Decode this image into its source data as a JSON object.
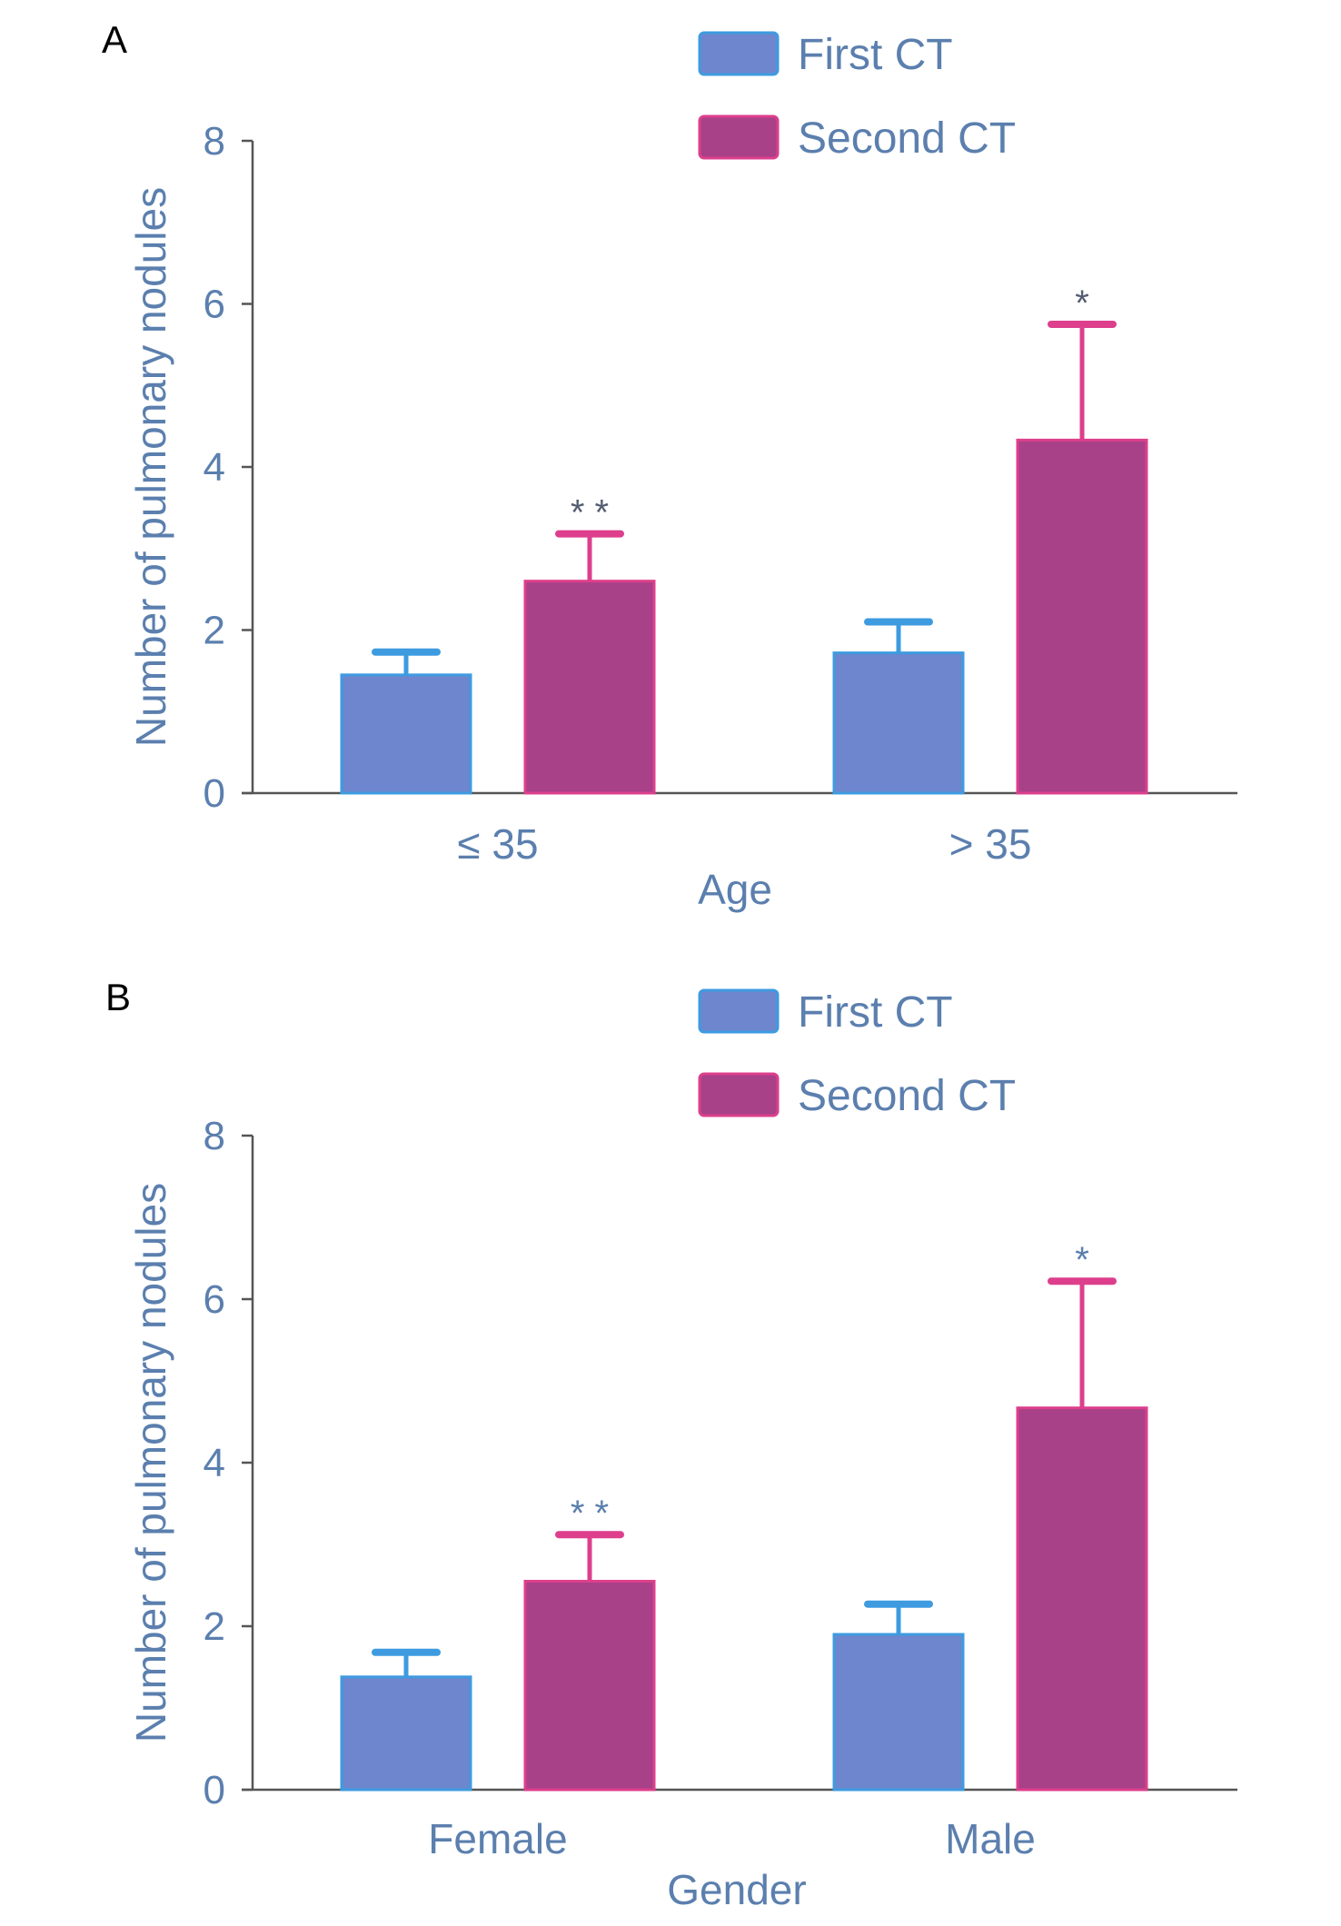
{
  "colors": {
    "first_ct": "#6d86cd",
    "first_ct_edge": "#3e9be0",
    "first_ct_error": "#3e9be0",
    "second_ct": "#a84188",
    "second_ct_edge": "#dd3f8c",
    "second_ct_error": "#dd3f8c",
    "axis": "#555555",
    "label": "#5b7fae"
  },
  "chart_data": [
    {
      "panel": "A",
      "type": "bar",
      "xlabel": "Age",
      "ylabel": "Number of pulmonary nodules",
      "ylim": [
        0,
        8
      ],
      "yticks": [
        0,
        2,
        4,
        6,
        8
      ],
      "grid": false,
      "legend": "top",
      "categories": [
        "≤ 35",
        "> 35"
      ],
      "series": [
        {
          "name": "First CT",
          "values": [
            1.45,
            1.72
          ],
          "error": [
            0.28,
            0.38
          ]
        },
        {
          "name": "Second CT",
          "values": [
            2.6,
            4.33
          ],
          "error": [
            0.58,
            1.42
          ]
        }
      ],
      "significance": [
        {
          "category": "≤ 35",
          "series": "Second CT",
          "label": "* *"
        },
        {
          "category": "> 35",
          "series": "Second CT",
          "label": "*"
        }
      ]
    },
    {
      "panel": "B",
      "type": "bar",
      "xlabel": "Gender",
      "ylabel": "Number of pulmonary nodules",
      "ylim": [
        0,
        8
      ],
      "yticks": [
        0,
        2,
        4,
        6,
        8
      ],
      "grid": false,
      "legend": "top",
      "categories": [
        "Female",
        "Male"
      ],
      "series": [
        {
          "name": "First CT",
          "values": [
            1.38,
            1.9
          ],
          "error": [
            0.3,
            0.37
          ]
        },
        {
          "name": "Second CT",
          "values": [
            2.55,
            4.67
          ],
          "error": [
            0.57,
            1.55
          ]
        }
      ],
      "significance": [
        {
          "category": "Female",
          "series": "Second CT",
          "label": "* *"
        },
        {
          "category": "Male",
          "series": "Second CT",
          "label": "*"
        }
      ]
    }
  ]
}
